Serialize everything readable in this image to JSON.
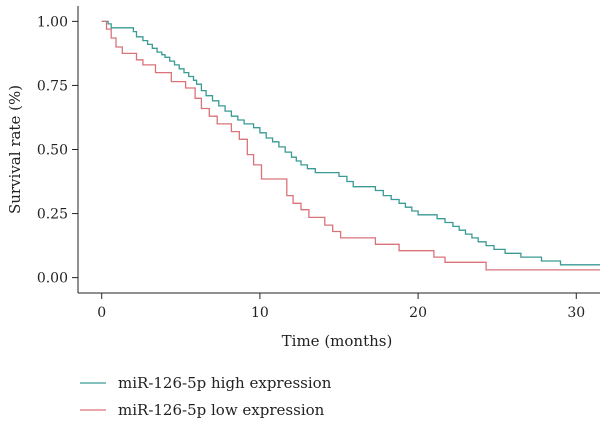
{
  "chart_data": {
    "type": "line",
    "subtype": "kaplan-meier step curves",
    "title": "",
    "xlabel": "Time (months)",
    "ylabel": "Survival rate (%)",
    "xlim": [
      -1.5,
      31.5
    ],
    "ylim": [
      -0.06,
      1.06
    ],
    "x_ticks": [
      0,
      10,
      20,
      30
    ],
    "y_ticks": [
      0.0,
      0.25,
      0.5,
      0.75,
      1.0
    ],
    "y_tick_labels": [
      "0.00",
      "0.25",
      "0.50",
      "0.75",
      "1.00"
    ],
    "grid": false,
    "legend_position": "bottom-left",
    "series": [
      {
        "name": "miR-126-5p high expression",
        "color": "#3a9a94",
        "x": [
          0,
          0.4,
          0.6,
          1,
          1.5,
          2,
          2.2,
          2.6,
          2.9,
          3.2,
          3.5,
          3.8,
          4.0,
          4.3,
          4.6,
          4.9,
          5.2,
          5.5,
          5.8,
          6.0,
          6.3,
          6.6,
          7.0,
          7.4,
          7.8,
          8.2,
          8.6,
          9.0,
          9.6,
          10.0,
          10.4,
          10.8,
          11.2,
          11.6,
          12.0,
          12.3,
          12.6,
          13.0,
          13.5,
          15.0,
          15.5,
          15.9,
          17.3,
          17.8,
          18.3,
          18.8,
          19.2,
          19.6,
          20.0,
          21.2,
          21.7,
          22.2,
          22.6,
          23.0,
          23.4,
          23.8,
          24.3,
          24.8,
          25.5,
          26.5,
          27.8,
          29.0,
          31.5
        ],
        "y": [
          1.0,
          0.99,
          0.975,
          0.975,
          0.975,
          0.96,
          0.94,
          0.925,
          0.91,
          0.895,
          0.88,
          0.87,
          0.86,
          0.845,
          0.83,
          0.815,
          0.8,
          0.785,
          0.77,
          0.755,
          0.73,
          0.71,
          0.69,
          0.67,
          0.65,
          0.63,
          0.615,
          0.6,
          0.585,
          0.565,
          0.545,
          0.53,
          0.51,
          0.49,
          0.47,
          0.455,
          0.44,
          0.425,
          0.41,
          0.395,
          0.375,
          0.355,
          0.34,
          0.32,
          0.305,
          0.29,
          0.275,
          0.26,
          0.245,
          0.23,
          0.215,
          0.2,
          0.185,
          0.17,
          0.155,
          0.14,
          0.125,
          0.11,
          0.095,
          0.08,
          0.065,
          0.05,
          0.05
        ]
      },
      {
        "name": "miR-126-5p low expression",
        "color": "#d9737a",
        "x": [
          0,
          0.3,
          0.6,
          0.9,
          1.3,
          2.2,
          2.6,
          3.4,
          4.4,
          5.3,
          5.9,
          6.3,
          6.8,
          7.3,
          8.2,
          8.7,
          9.2,
          9.6,
          10.1,
          11.7,
          12.1,
          12.6,
          13.1,
          14.1,
          14.6,
          15.1,
          17.3,
          18.8,
          21.0,
          21.7,
          24.3,
          31.5
        ],
        "y": [
          1.0,
          0.97,
          0.935,
          0.9,
          0.875,
          0.85,
          0.83,
          0.8,
          0.765,
          0.74,
          0.7,
          0.66,
          0.63,
          0.6,
          0.57,
          0.54,
          0.48,
          0.44,
          0.385,
          0.32,
          0.29,
          0.265,
          0.235,
          0.205,
          0.18,
          0.155,
          0.13,
          0.105,
          0.08,
          0.06,
          0.03,
          0.03
        ]
      }
    ]
  }
}
